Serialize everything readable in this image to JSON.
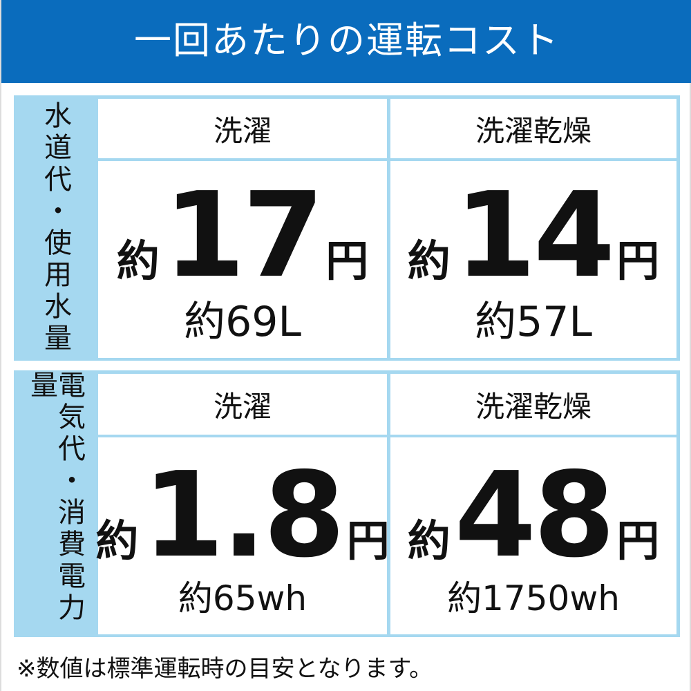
{
  "title": "一回あたりの運転コスト",
  "sections": [
    {
      "label": "水道代・使用水量",
      "columns": [
        {
          "header": "洗濯",
          "prefix": "約",
          "value": "17",
          "unit": "円",
          "sub": "約69L"
        },
        {
          "header": "洗濯乾燥",
          "prefix": "約",
          "value": "14",
          "unit": "円",
          "sub": "約57L"
        }
      ]
    },
    {
      "label": "電気代・消費電力量",
      "columns": [
        {
          "header": "洗濯",
          "prefix": "約",
          "value": "1.8",
          "unit": "円",
          "sub": "約65wh"
        },
        {
          "header": "洗濯乾燥",
          "prefix": "約",
          "value": "48",
          "unit": "円",
          "sub": "約1750wh"
        }
      ]
    }
  ],
  "footnote": "※数値は標準運転時の目安となります。",
  "colors": {
    "header": "#0a6cbd",
    "accent": "#a5d8f0"
  }
}
